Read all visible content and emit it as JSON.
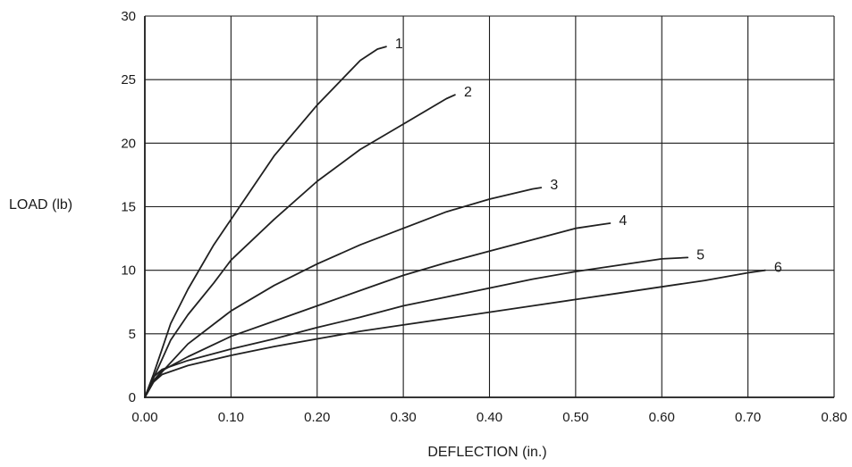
{
  "chart_data": {
    "type": "line",
    "title": "",
    "xlabel": "DEFLECTION (in.)",
    "ylabel": "LOAD (lb)",
    "xlim": [
      0,
      0.8
    ],
    "ylim": [
      0,
      30
    ],
    "grid": true,
    "x_ticks": [
      "0.00",
      "0.10",
      "0.20",
      "0.30",
      "0.40",
      "0.50",
      "0.60",
      "0.70",
      "0.80"
    ],
    "y_ticks": [
      "0",
      "5",
      "10",
      "15",
      "20",
      "25",
      "30"
    ],
    "series": [
      {
        "name": "1",
        "x": [
          0,
          0.01,
          0.02,
          0.03,
          0.05,
          0.08,
          0.1,
          0.15,
          0.2,
          0.25,
          0.27,
          0.28
        ],
        "y": [
          0,
          1.8,
          3.8,
          5.8,
          8.5,
          12,
          14,
          19,
          23,
          26.5,
          27.4,
          27.6
        ]
      },
      {
        "name": "2",
        "x": [
          0,
          0.01,
          0.02,
          0.03,
          0.05,
          0.08,
          0.1,
          0.15,
          0.2,
          0.25,
          0.3,
          0.35,
          0.36
        ],
        "y": [
          0,
          1.5,
          3,
          4.5,
          6.5,
          9,
          10.8,
          14,
          17,
          19.5,
          21.5,
          23.5,
          23.8
        ]
      },
      {
        "name": "3",
        "x": [
          0,
          0.01,
          0.02,
          0.05,
          0.1,
          0.15,
          0.2,
          0.25,
          0.3,
          0.35,
          0.4,
          0.45,
          0.46
        ],
        "y": [
          0,
          1.2,
          2,
          4.2,
          6.8,
          8.8,
          10.5,
          12,
          13.3,
          14.6,
          15.6,
          16.4,
          16.5
        ]
      },
      {
        "name": "4",
        "x": [
          0,
          0.01,
          0.02,
          0.05,
          0.1,
          0.15,
          0.2,
          0.25,
          0.3,
          0.35,
          0.4,
          0.45,
          0.5,
          0.53,
          0.54
        ],
        "y": [
          0,
          1.3,
          2.1,
          3.2,
          4.8,
          6,
          7.2,
          8.4,
          9.6,
          10.6,
          11.5,
          12.4,
          13.3,
          13.6,
          13.7
        ]
      },
      {
        "name": "5",
        "x": [
          0,
          0.01,
          0.02,
          0.05,
          0.1,
          0.15,
          0.2,
          0.25,
          0.3,
          0.35,
          0.4,
          0.45,
          0.5,
          0.55,
          0.6,
          0.63
        ],
        "y": [
          0,
          1.6,
          2.2,
          2.9,
          3.8,
          4.6,
          5.5,
          6.3,
          7.2,
          7.9,
          8.6,
          9.3,
          9.9,
          10.4,
          10.9,
          11
        ]
      },
      {
        "name": "6",
        "x": [
          0,
          0.01,
          0.02,
          0.05,
          0.1,
          0.15,
          0.2,
          0.25,
          0.3,
          0.35,
          0.4,
          0.45,
          0.5,
          0.55,
          0.6,
          0.65,
          0.7,
          0.72
        ],
        "y": [
          0,
          1.2,
          1.8,
          2.5,
          3.3,
          4,
          4.6,
          5.2,
          5.7,
          6.2,
          6.7,
          7.2,
          7.7,
          8.2,
          8.7,
          9.2,
          9.8,
          10
        ]
      }
    ]
  }
}
